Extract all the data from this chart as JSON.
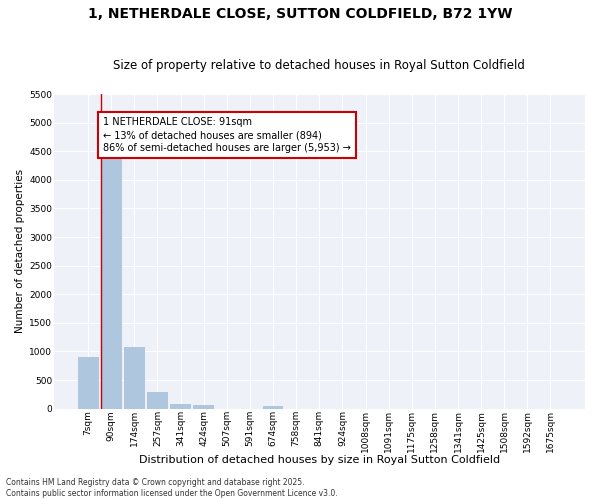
{
  "title": "1, NETHERDALE CLOSE, SUTTON COLDFIELD, B72 1YW",
  "subtitle": "Size of property relative to detached houses in Royal Sutton Coldfield",
  "xlabel": "Distribution of detached houses by size in Royal Sutton Coldfield",
  "ylabel": "Number of detached properties",
  "categories": [
    "7sqm",
    "90sqm",
    "174sqm",
    "257sqm",
    "341sqm",
    "424sqm",
    "507sqm",
    "591sqm",
    "674sqm",
    "758sqm",
    "841sqm",
    "924sqm",
    "1008sqm",
    "1091sqm",
    "1175sqm",
    "1258sqm",
    "1341sqm",
    "1425sqm",
    "1508sqm",
    "1592sqm",
    "1675sqm"
  ],
  "values": [
    900,
    4580,
    1080,
    295,
    75,
    60,
    0,
    0,
    55,
    0,
    0,
    0,
    0,
    0,
    0,
    0,
    0,
    0,
    0,
    0,
    0
  ],
  "bar_color": "#aec6de",
  "annotation_text_line1": "1 NETHERDALE CLOSE: 91sqm",
  "annotation_text_line2": "← 13% of detached houses are smaller (894)",
  "annotation_text_line3": "86% of semi-detached houses are larger (5,953) →",
  "annotation_box_color": "#cc0000",
  "property_line_index": 1,
  "ylim": [
    0,
    5500
  ],
  "yticks": [
    0,
    500,
    1000,
    1500,
    2000,
    2500,
    3000,
    3500,
    4000,
    4500,
    5000,
    5500
  ],
  "background_color": "#eef2f8",
  "grid_color": "#ffffff",
  "footer_line1": "Contains HM Land Registry data © Crown copyright and database right 2025.",
  "footer_line2": "Contains public sector information licensed under the Open Government Licence v3.0.",
  "title_fontsize": 10,
  "subtitle_fontsize": 8.5,
  "xlabel_fontsize": 8,
  "ylabel_fontsize": 7.5,
  "tick_fontsize": 6.5,
  "annotation_fontsize": 7,
  "footer_fontsize": 5.5
}
